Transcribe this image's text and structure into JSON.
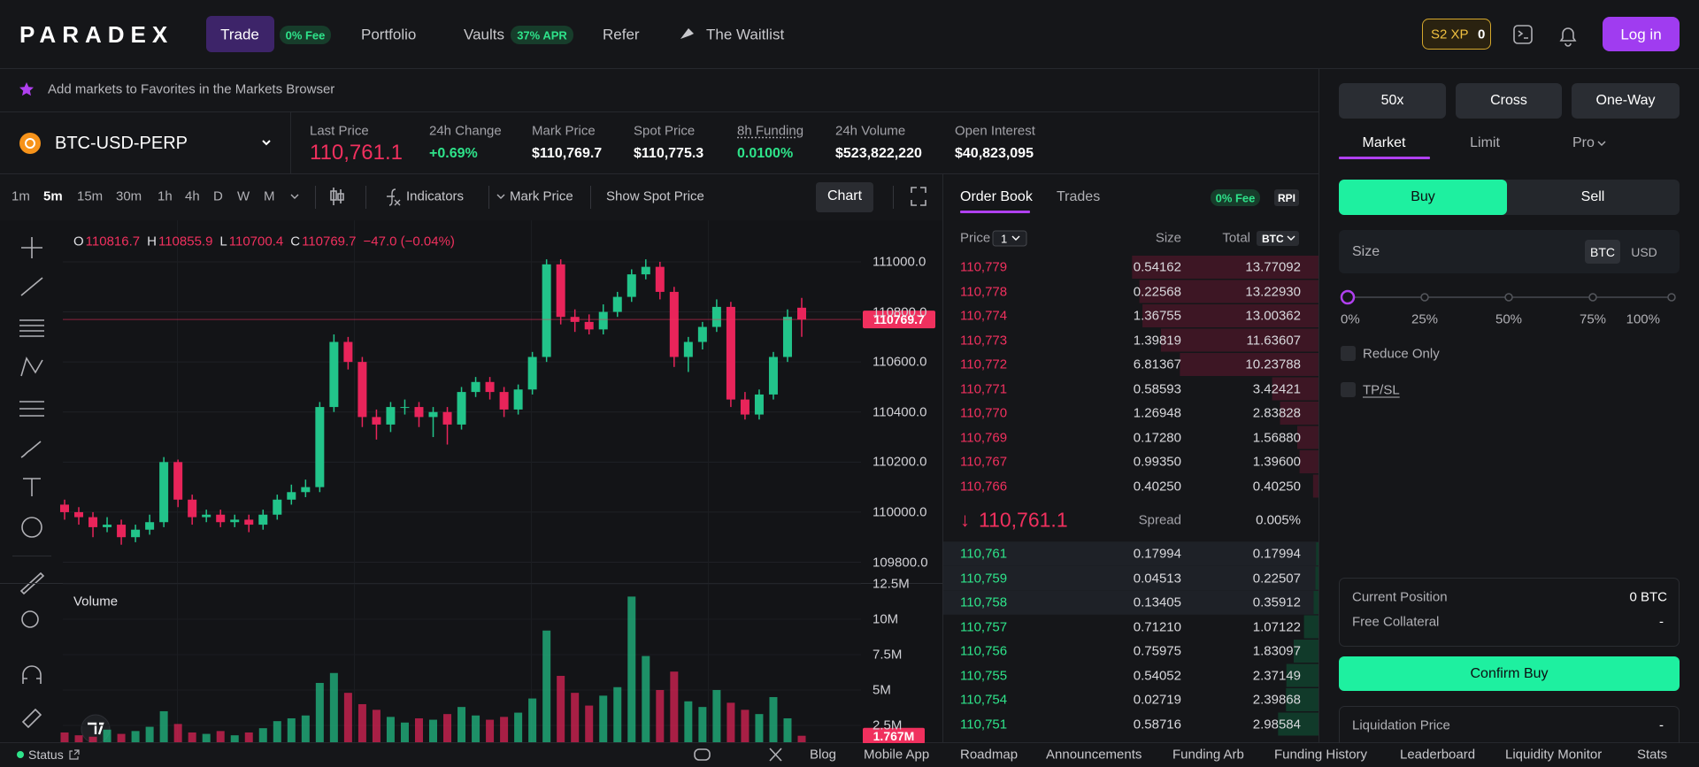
{
  "nav": {
    "logo": "PARADEX",
    "trade": "Trade",
    "trade_badge": "0% Fee",
    "portfolio": "Portfolio",
    "vaults": "Vaults",
    "vaults_badge": "37% APR",
    "refer": "Refer",
    "waitlist": "The Waitlist",
    "xp_label": "S2 XP",
    "xp_value": "0",
    "login": "Log in"
  },
  "favorites_hint": "Add markets to Favorites in the Markets Browser",
  "market": {
    "symbol": "BTC-USD-PERP",
    "stats": [
      {
        "label": "Last Price",
        "value": "110,761.1"
      },
      {
        "label": "24h Change",
        "value": "+0.69%"
      },
      {
        "label": "Mark Price",
        "value": "$110,769.7"
      },
      {
        "label": "Spot Price",
        "value": "$110,775.3"
      },
      {
        "label": "8h Funding",
        "value": "0.0100%"
      },
      {
        "label": "24h Volume",
        "value": "$523,822,220"
      },
      {
        "label": "Open Interest",
        "value": "$40,823,095"
      }
    ]
  },
  "chart_toolbar": {
    "intervals": [
      "1m",
      "5m",
      "15m",
      "30m",
      "1h",
      "4h",
      "D",
      "W",
      "M"
    ],
    "indicators": "Indicators",
    "mark_price": "Mark Price",
    "spot_price": "Show Spot Price",
    "chart": "Chart"
  },
  "chart_data": {
    "type": "candlestick",
    "legend": [
      {
        "key": "O",
        "value": "110816.7"
      },
      {
        "key": "H",
        "value": "110855.9"
      },
      {
        "key": "L",
        "value": "110700.4"
      },
      {
        "key": "C",
        "value": "110769.7"
      }
    ],
    "legend_change": "−47.0 (−0.04%)",
    "open": [
      110030,
      110000,
      109980,
      109940,
      109950,
      109900,
      109930,
      109960,
      110200,
      110050,
      109980,
      109990,
      109960,
      109970,
      109950,
      109990,
      110050,
      110080,
      110100,
      110420,
      110680,
      110600,
      110380,
      110350,
      110420,
      110420,
      110380,
      110400,
      110350,
      110480,
      110520,
      110480,
      110410,
      110490,
      110620,
      110990,
      110780,
      110760,
      110730,
      110800,
      110860,
      110950,
      110980,
      110880,
      110620,
      110680,
      110740,
      110820,
      110450,
      110390,
      110470,
      110620,
      110816.7
    ],
    "high": [
      110050,
      110020,
      110000,
      109980,
      109970,
      109950,
      109990,
      110220,
      110210,
      110070,
      110010,
      110010,
      109990,
      109990,
      110010,
      110070,
      110110,
      110130,
      110440,
      110710,
      110700,
      110620,
      110410,
      110440,
      110450,
      110440,
      110420,
      110420,
      110500,
      110540,
      110540,
      110500,
      110510,
      110640,
      111010,
      111010,
      110810,
      110790,
      110830,
      110880,
      110970,
      111010,
      111000,
      110900,
      110700,
      110760,
      110850,
      110840,
      110480,
      110490,
      110640,
      110810,
      110855.9
    ],
    "low": [
      109970,
      109950,
      109900,
      109920,
      109870,
      109880,
      109910,
      109940,
      110020,
      109950,
      109960,
      109940,
      109940,
      109920,
      109930,
      109970,
      110030,
      110060,
      110080,
      110400,
      110570,
      110340,
      110290,
      110320,
      110390,
      110340,
      110300,
      110270,
      110330,
      110460,
      110450,
      110380,
      110390,
      110470,
      110600,
      110750,
      110720,
      110710,
      110710,
      110780,
      110840,
      110930,
      110850,
      110580,
      110560,
      110650,
      110720,
      110420,
      110370,
      110370,
      110450,
      110600,
      110700.4
    ],
    "close": [
      110000,
      109980,
      109940,
      109950,
      109900,
      109930,
      109960,
      110200,
      110050,
      109980,
      109990,
      109960,
      109970,
      109950,
      109990,
      110050,
      110080,
      110100,
      110420,
      110680,
      110600,
      110380,
      110350,
      110420,
      110420,
      110380,
      110400,
      110350,
      110480,
      110520,
      110480,
      110410,
      110490,
      110620,
      110990,
      110780,
      110760,
      110730,
      110800,
      110860,
      110950,
      110980,
      110880,
      110620,
      110680,
      110740,
      110820,
      110450,
      110390,
      110470,
      110620,
      110780,
      110769.7
    ],
    "ylim": [
      109717,
      111166
    ],
    "yticks": [
      {
        "value": 109800,
        "label": "109800.0"
      },
      {
        "value": 110000,
        "label": "110000.0"
      },
      {
        "value": 110200,
        "label": "110200.0"
      },
      {
        "value": 110400,
        "label": "110400.0"
      },
      {
        "value": 110600,
        "label": "110600.0"
      },
      {
        "value": 110800,
        "label": "110800.0"
      },
      {
        "value": 111000,
        "label": "111000.0"
      }
    ],
    "price_tag": "110769.7",
    "up_color": "#22c48a",
    "down_color": "#e8245a",
    "grid": true,
    "volume": {
      "title": "Volume",
      "values": [
        2000000,
        1800000,
        1700000,
        2200000,
        1900000,
        2100000,
        2400000,
        3500000,
        2600000,
        2000000,
        1900000,
        2100000,
        1800000,
        2000000,
        2300000,
        2800000,
        3000000,
        3200000,
        5500000,
        6200000,
        4800000,
        4000000,
        3600000,
        3100000,
        2700000,
        3000000,
        2900000,
        3300000,
        3800000,
        3200000,
        2900000,
        3100000,
        3400000,
        4400000,
        9200000,
        6000000,
        4800000,
        3900000,
        4600000,
        5200000,
        11600000,
        7400000,
        5000000,
        6300000,
        4200000,
        3800000,
        5000000,
        4100000,
        3600000,
        3300000,
        4500000,
        3000000,
        1767000
      ],
      "ylim": [
        1310000,
        12560000
      ],
      "yticks": [
        {
          "value": 2500000,
          "label": "2.5M"
        },
        {
          "value": 5000000,
          "label": "5M"
        },
        {
          "value": 7500000,
          "label": "7.5M"
        },
        {
          "value": 10000000,
          "label": "10M"
        },
        {
          "value": 12500000,
          "label": "12.5M"
        }
      ],
      "last_label": "1.767M"
    }
  },
  "order_book": {
    "tabs": [
      "Order Book",
      "Trades"
    ],
    "fee_badge": "0% Fee",
    "rpi": "RPI",
    "headers": {
      "price": "Price",
      "tick": "1",
      "size": "Size",
      "total": "Total",
      "unit": "BTC"
    },
    "asks": [
      {
        "price": "110,779",
        "size": "0.54162",
        "total": "13.77092"
      },
      {
        "price": "110,778",
        "size": "0.22568",
        "total": "13.22930"
      },
      {
        "price": "110,774",
        "size": "1.36755",
        "total": "13.00362"
      },
      {
        "price": "110,773",
        "size": "1.39819",
        "total": "11.63607"
      },
      {
        "price": "110,772",
        "size": "6.81367",
        "total": "10.23788"
      },
      {
        "price": "110,771",
        "size": "0.58593",
        "total": "3.42421"
      },
      {
        "price": "110,770",
        "size": "1.26948",
        "total": "2.83828"
      },
      {
        "price": "110,769",
        "size": "0.17280",
        "total": "1.56880"
      },
      {
        "price": "110,767",
        "size": "0.99350",
        "total": "1.39600"
      },
      {
        "price": "110,766",
        "size": "0.40250",
        "total": "0.40250"
      }
    ],
    "mid_arrow": "↓",
    "mid_price": "110,761.1",
    "spread_label": "Spread",
    "spread": "0.005%",
    "bids": [
      {
        "price": "110,761",
        "size": "0.17994",
        "total": "0.17994"
      },
      {
        "price": "110,759",
        "size": "0.04513",
        "total": "0.22507"
      },
      {
        "price": "110,758",
        "size": "0.13405",
        "total": "0.35912"
      },
      {
        "price": "110,757",
        "size": "0.71210",
        "total": "1.07122"
      },
      {
        "price": "110,756",
        "size": "0.75975",
        "total": "1.83097"
      },
      {
        "price": "110,755",
        "size": "0.54052",
        "total": "2.37149"
      },
      {
        "price": "110,754",
        "size": "0.02719",
        "total": "2.39868"
      },
      {
        "price": "110,751",
        "size": "0.58716",
        "total": "2.98584"
      }
    ]
  },
  "order_form": {
    "leverage": "50x",
    "margin": "Cross",
    "mode": "One-Way",
    "tabs": [
      "Market",
      "Limit",
      "Pro"
    ],
    "buy": "Buy",
    "sell": "Sell",
    "size_label": "Size",
    "size_units": [
      "BTC",
      "USD"
    ],
    "slider_marks": [
      "0%",
      "25%",
      "50%",
      "75%",
      "100%"
    ],
    "reduce_only": "Reduce Only",
    "tpsl": "TP/SL",
    "current_position_label": "Current Position",
    "current_position": "0 BTC",
    "free_collateral_label": "Free Collateral",
    "free_collateral": "-",
    "confirm": "Confirm Buy",
    "liquidation_label": "Liquidation Price",
    "liquidation": "-"
  },
  "footer": {
    "status": "Status",
    "links": [
      "Blog",
      "Mobile App",
      "Roadmap",
      "Announcements",
      "Funding Arb",
      "Funding History",
      "Leaderboard",
      "Liquidity Monitor",
      "Stats"
    ]
  }
}
